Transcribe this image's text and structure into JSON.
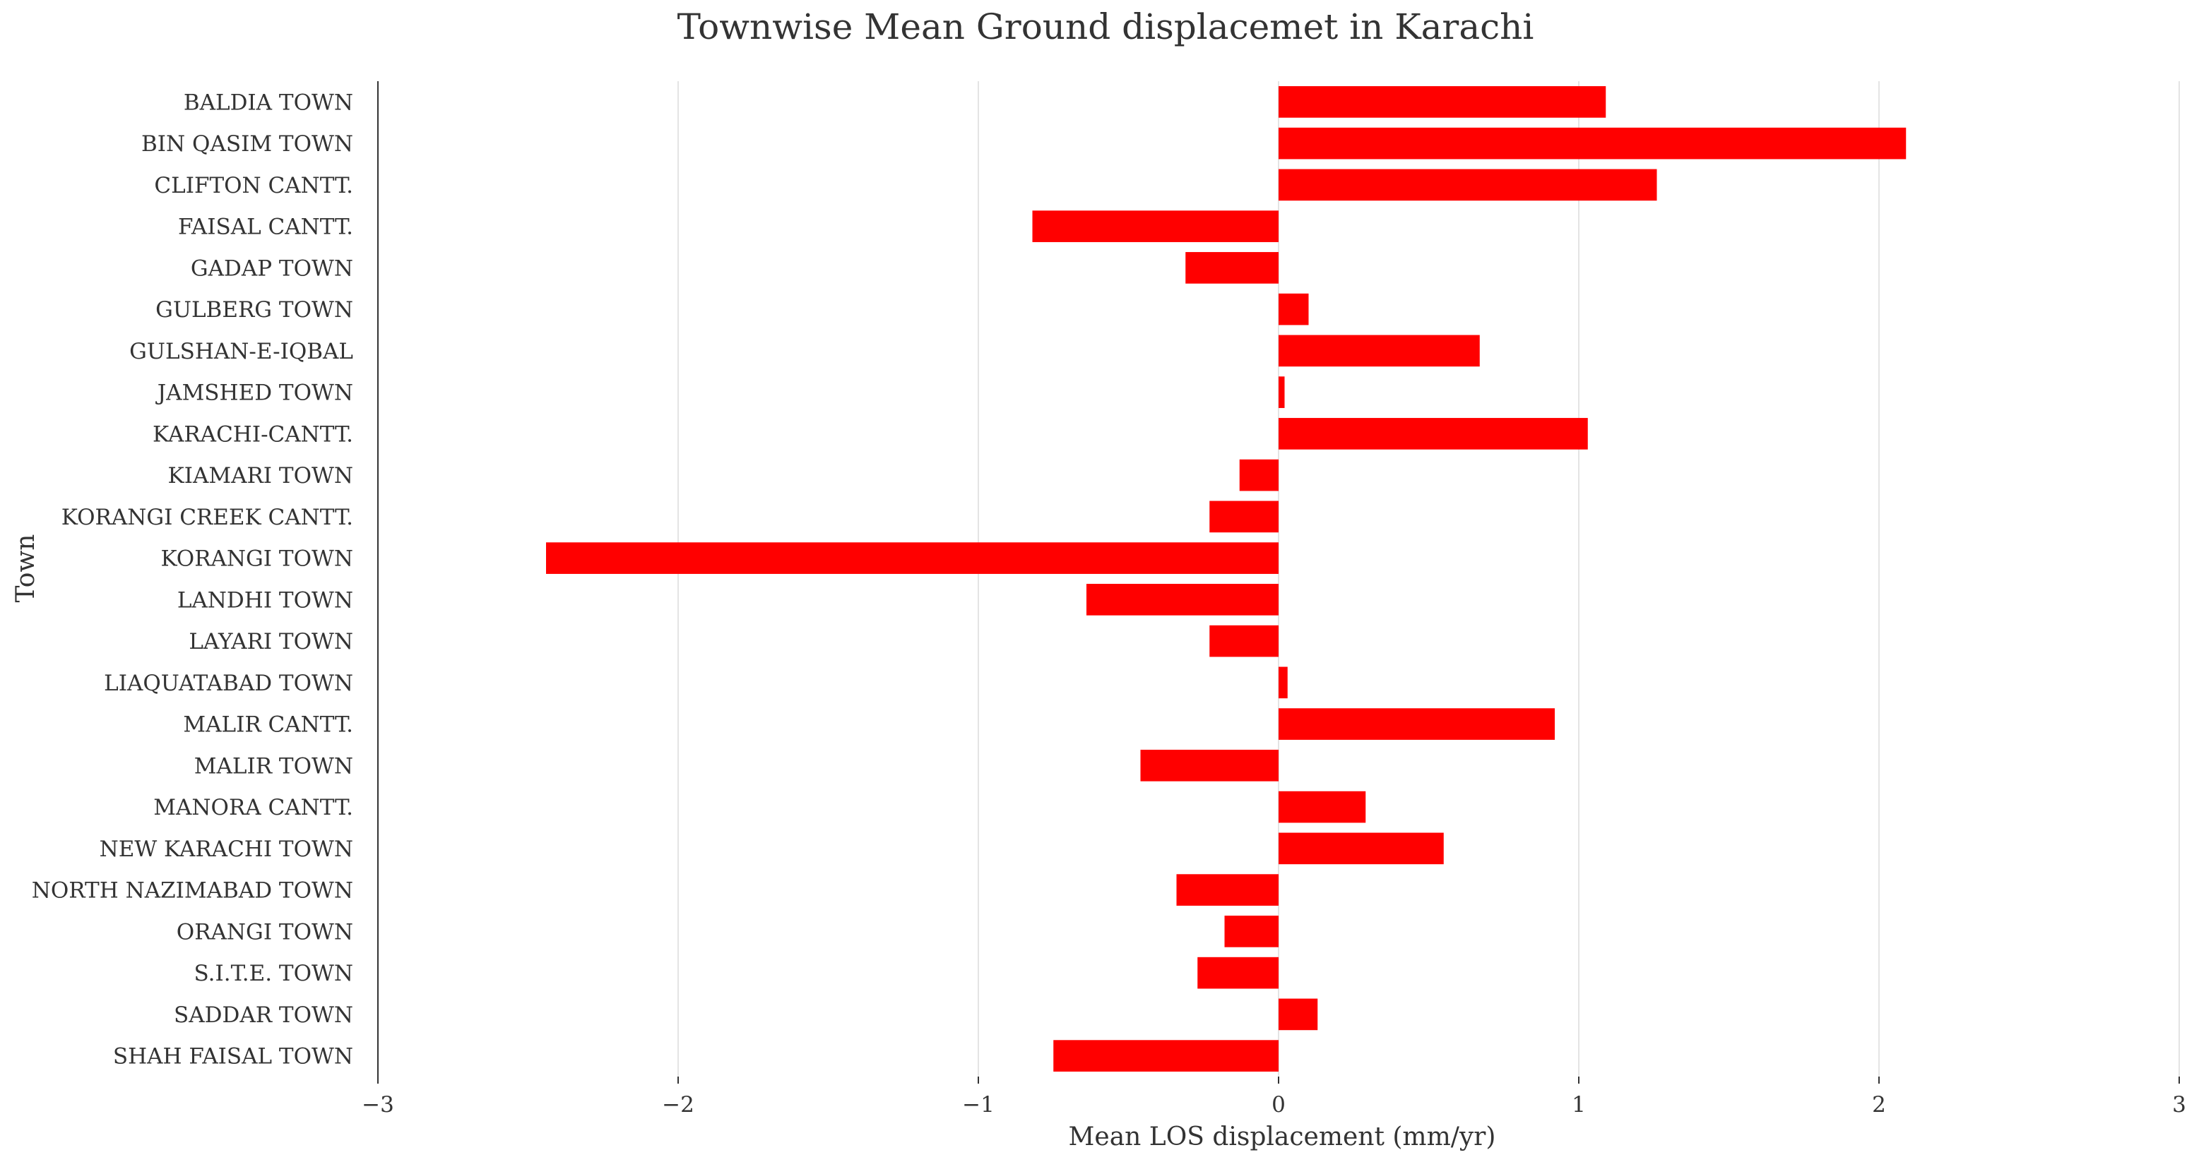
{
  "chart_data": {
    "type": "bar",
    "orientation": "horizontal",
    "title": "Townwise Mean Ground displacemet in Karachi",
    "xlabel": "Mean LOS displacement (mm/yr)",
    "ylabel": "Town",
    "xlim": [
      -3,
      3
    ],
    "xticks": [
      -3,
      -2,
      -1,
      0,
      1,
      2,
      3
    ],
    "xtick_labels": [
      "−3",
      "−2",
      "−1",
      "0",
      "1",
      "2",
      "3"
    ],
    "grid": "vertical",
    "bar_color": "#ff0000",
    "categories": [
      "BALDIA TOWN",
      "BIN QASIM TOWN",
      "CLIFTON CANTT.",
      "FAISAL CANTT.",
      "GADAP TOWN",
      "GULBERG TOWN",
      "GULSHAN-E-IQBAL",
      "JAMSHED TOWN",
      "KARACHI-CANTT.",
      "KIAMARI TOWN",
      "KORANGI CREEK CANTT.",
      "KORANGI TOWN",
      "LANDHI TOWN",
      "LAYARI TOWN",
      "LIAQUATABAD TOWN",
      "MALIR CANTT.",
      "MALIR TOWN",
      "MANORA CANTT.",
      "NEW KARACHI TOWN",
      "NORTH NAZIMABAD TOWN",
      "ORANGI TOWN",
      "S.I.T.E. TOWN",
      "SADDAR TOWN",
      "SHAH FAISAL TOWN"
    ],
    "values": [
      1.09,
      2.09,
      1.26,
      -0.82,
      -0.31,
      0.1,
      0.67,
      0.02,
      1.03,
      -0.13,
      -0.23,
      -2.44,
      -0.64,
      -0.23,
      0.03,
      0.92,
      -0.46,
      0.29,
      0.55,
      -0.34,
      -0.18,
      -0.27,
      0.13,
      -0.75
    ]
  }
}
